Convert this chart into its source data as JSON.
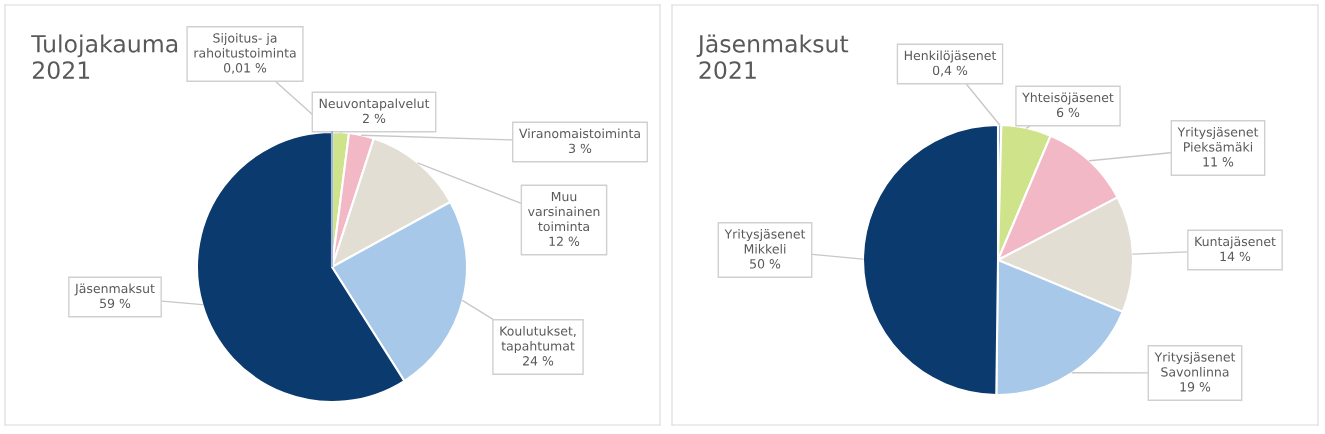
{
  "chart_data": [
    {
      "type": "pie",
      "title": "Tulojakauma\n2021",
      "categories": [
        "Sijoitus- ja\nrahoitustoiminta",
        "Neuvontapalvelut",
        "Viranomaistoiminta",
        "Muu\nvarsinainen\ntoiminta",
        "Koulutukset,\ntapahtumat",
        "Jäsenmaksut"
      ],
      "values": [
        0.01,
        2,
        3,
        12,
        24,
        59
      ],
      "value_labels": [
        "0,01 %",
        "2 %",
        "3 %",
        "12 %",
        "24 %",
        "59 %"
      ],
      "colors": [
        "#8faadc",
        "#cfe38a",
        "#f2b8c6",
        "#e3ded3",
        "#a7c8e8",
        "#0b3a6e"
      ]
    },
    {
      "type": "pie",
      "title": "Jäsenmaksut\n2021",
      "categories": [
        "Henkilöjäsenet",
        "Yhteisöjäsenet",
        "Yritysjäsenet\nPieksämäki",
        "Kuntajäsenet",
        "Yritysjäsenet\nSavonlinna",
        "Yritysjäsenet\nMikkeli"
      ],
      "values": [
        0.4,
        6,
        11,
        14,
        19,
        50
      ],
      "value_labels": [
        "0,4 %",
        "6 %",
        "11 %",
        "14 %",
        "19 %",
        "50 %"
      ],
      "colors": [
        "#8faadc",
        "#cfe38a",
        "#f2b8c6",
        "#e3ded3",
        "#a7c8e8",
        "#0b3a6e"
      ]
    }
  ]
}
